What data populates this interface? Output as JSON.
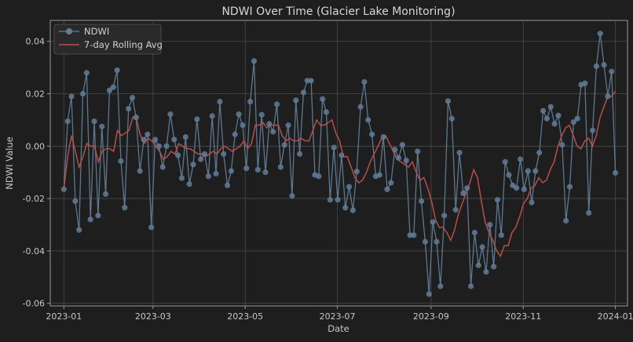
{
  "chart_data": {
    "type": "line",
    "title": "NDWI Over Time (Glacier Lake Monitoring)",
    "xlabel": "Date",
    "ylabel": "NDWI Value",
    "x_ticks": [
      "2023-01",
      "2023-03",
      "2023-05",
      "2023-07",
      "2023-09",
      "2023-11",
      "2024-01"
    ],
    "y_ticks": [
      "-0.06",
      "-0.04",
      "-0.02",
      "0.00",
      "0.02",
      "0.04"
    ],
    "ylim": [
      -0.061,
      0.048
    ],
    "xlim_days": [
      -9,
      373
    ],
    "x_tick_days": [
      0,
      59,
      120,
      181,
      243,
      304,
      365
    ],
    "y_tick_values": [
      -0.06,
      -0.04,
      -0.02,
      0.0,
      0.02,
      0.04
    ],
    "grid": true,
    "legend_position": "top-left",
    "series": [
      {
        "name": "NDWI",
        "color": "#5f7d96",
        "marker": "circle",
        "values": [
          -0.0165,
          0.0095,
          0.019,
          -0.021,
          -0.032,
          0.02,
          0.028,
          -0.028,
          0.0095,
          -0.0265,
          0.0075,
          -0.0183,
          0.0213,
          0.0225,
          0.029,
          -0.0057,
          -0.0235,
          0.0143,
          0.0185,
          0.011,
          -0.0095,
          0.0025,
          0.0045,
          -0.031,
          0.0025,
          0.0,
          -0.008,
          0.0,
          0.0122,
          0.0025,
          -0.0035,
          -0.0122,
          0.0035,
          -0.0145,
          -0.007,
          0.0103,
          -0.005,
          -0.003,
          -0.0115,
          0.0115,
          -0.0105,
          0.017,
          -0.003,
          -0.015,
          -0.0095,
          0.0045,
          0.0122,
          0.008,
          -0.0085,
          0.017,
          0.0325,
          -0.009,
          0.012,
          -0.01,
          0.0085,
          0.0055,
          0.016,
          -0.008,
          0.0005,
          0.008,
          -0.019,
          0.0175,
          -0.003,
          0.0205,
          0.025,
          0.025,
          -0.011,
          -0.0115,
          0.018,
          0.013,
          -0.0205,
          -0.0005,
          -0.0205,
          -0.0035,
          -0.0235,
          -0.0155,
          -0.0245,
          -0.0097,
          0.015,
          0.0245,
          0.01,
          0.0045,
          -0.0115,
          -0.011,
          0.0035,
          -0.0165,
          -0.014,
          -0.0013,
          -0.0045,
          0.0005,
          -0.0055,
          -0.034,
          -0.034,
          -0.002,
          -0.021,
          -0.0365,
          -0.0565,
          -0.029,
          -0.0365,
          -0.0535,
          -0.0265,
          0.0172,
          0.0105,
          -0.0243,
          -0.0025,
          -0.018,
          -0.016,
          -0.0535,
          -0.033,
          -0.0455,
          -0.0385,
          -0.048,
          -0.03,
          -0.046,
          -0.0205,
          -0.034,
          -0.006,
          -0.011,
          -0.015,
          -0.016,
          -0.005,
          -0.0165,
          -0.0095,
          -0.0215,
          -0.0095,
          -0.0025,
          0.0135,
          0.0105,
          0.015,
          0.0085,
          0.0117,
          0.0005,
          -0.0285,
          -0.0155,
          0.0092,
          0.0105,
          0.0235,
          0.024,
          -0.0255,
          0.006,
          0.0305,
          0.043,
          0.031,
          0.019,
          0.0285,
          -0.0102
        ]
      },
      {
        "name": "7-day Rolling Avg",
        "color": "#c0504d",
        "marker": "none",
        "values": [
          -0.016,
          -0.004,
          0.004,
          -0.002,
          -0.008,
          -0.004,
          0.001,
          -0.0,
          0.0,
          -0.006,
          -0.002,
          -0.001,
          -0.001,
          -0.002,
          0.006,
          0.004,
          0.005,
          0.006,
          0.011,
          0.01,
          0.004,
          0.001,
          0.003,
          0.002,
          0.0,
          -0.002,
          -0.005,
          -0.004,
          -0.002,
          -0.003,
          0.001,
          0.0,
          -0.001,
          -0.001,
          -0.002,
          -0.003,
          -0.003,
          -0.004,
          -0.003,
          -0.002,
          -0.003,
          -0.001,
          0.0,
          -0.001,
          -0.002,
          -0.001,
          0.0,
          0.002,
          -0.001,
          0.001,
          0.008,
          0.008,
          0.009,
          0.007,
          0.008,
          0.008,
          0.008,
          0.004,
          0.002,
          0.003,
          0.002,
          0.002,
          0.003,
          0.002,
          0.002,
          0.006,
          0.01,
          0.008,
          0.008,
          0.009,
          0.01,
          0.005,
          0.002,
          -0.004,
          -0.004,
          -0.008,
          -0.012,
          -0.014,
          -0.013,
          -0.01,
          -0.006,
          -0.003,
          0.0,
          0.003,
          0.004,
          0.001,
          -0.002,
          -0.005,
          -0.006,
          -0.007,
          -0.008,
          -0.006,
          -0.01,
          -0.013,
          -0.012,
          -0.016,
          -0.021,
          -0.028,
          -0.031,
          -0.031,
          -0.033,
          -0.036,
          -0.032,
          -0.026,
          -0.022,
          -0.018,
          -0.014,
          -0.009,
          -0.012,
          -0.021,
          -0.029,
          -0.033,
          -0.036,
          -0.04,
          -0.042,
          -0.038,
          -0.038,
          -0.033,
          -0.031,
          -0.027,
          -0.022,
          -0.02,
          -0.016,
          -0.015,
          -0.012,
          -0.014,
          -0.013,
          -0.009,
          -0.006,
          0.0,
          0.004,
          0.007,
          0.008,
          0.004,
          0.0,
          -0.001,
          0.002,
          0.003,
          0.0,
          0.004,
          0.011,
          0.015,
          0.019,
          0.019,
          0.021
        ]
      }
    ]
  }
}
